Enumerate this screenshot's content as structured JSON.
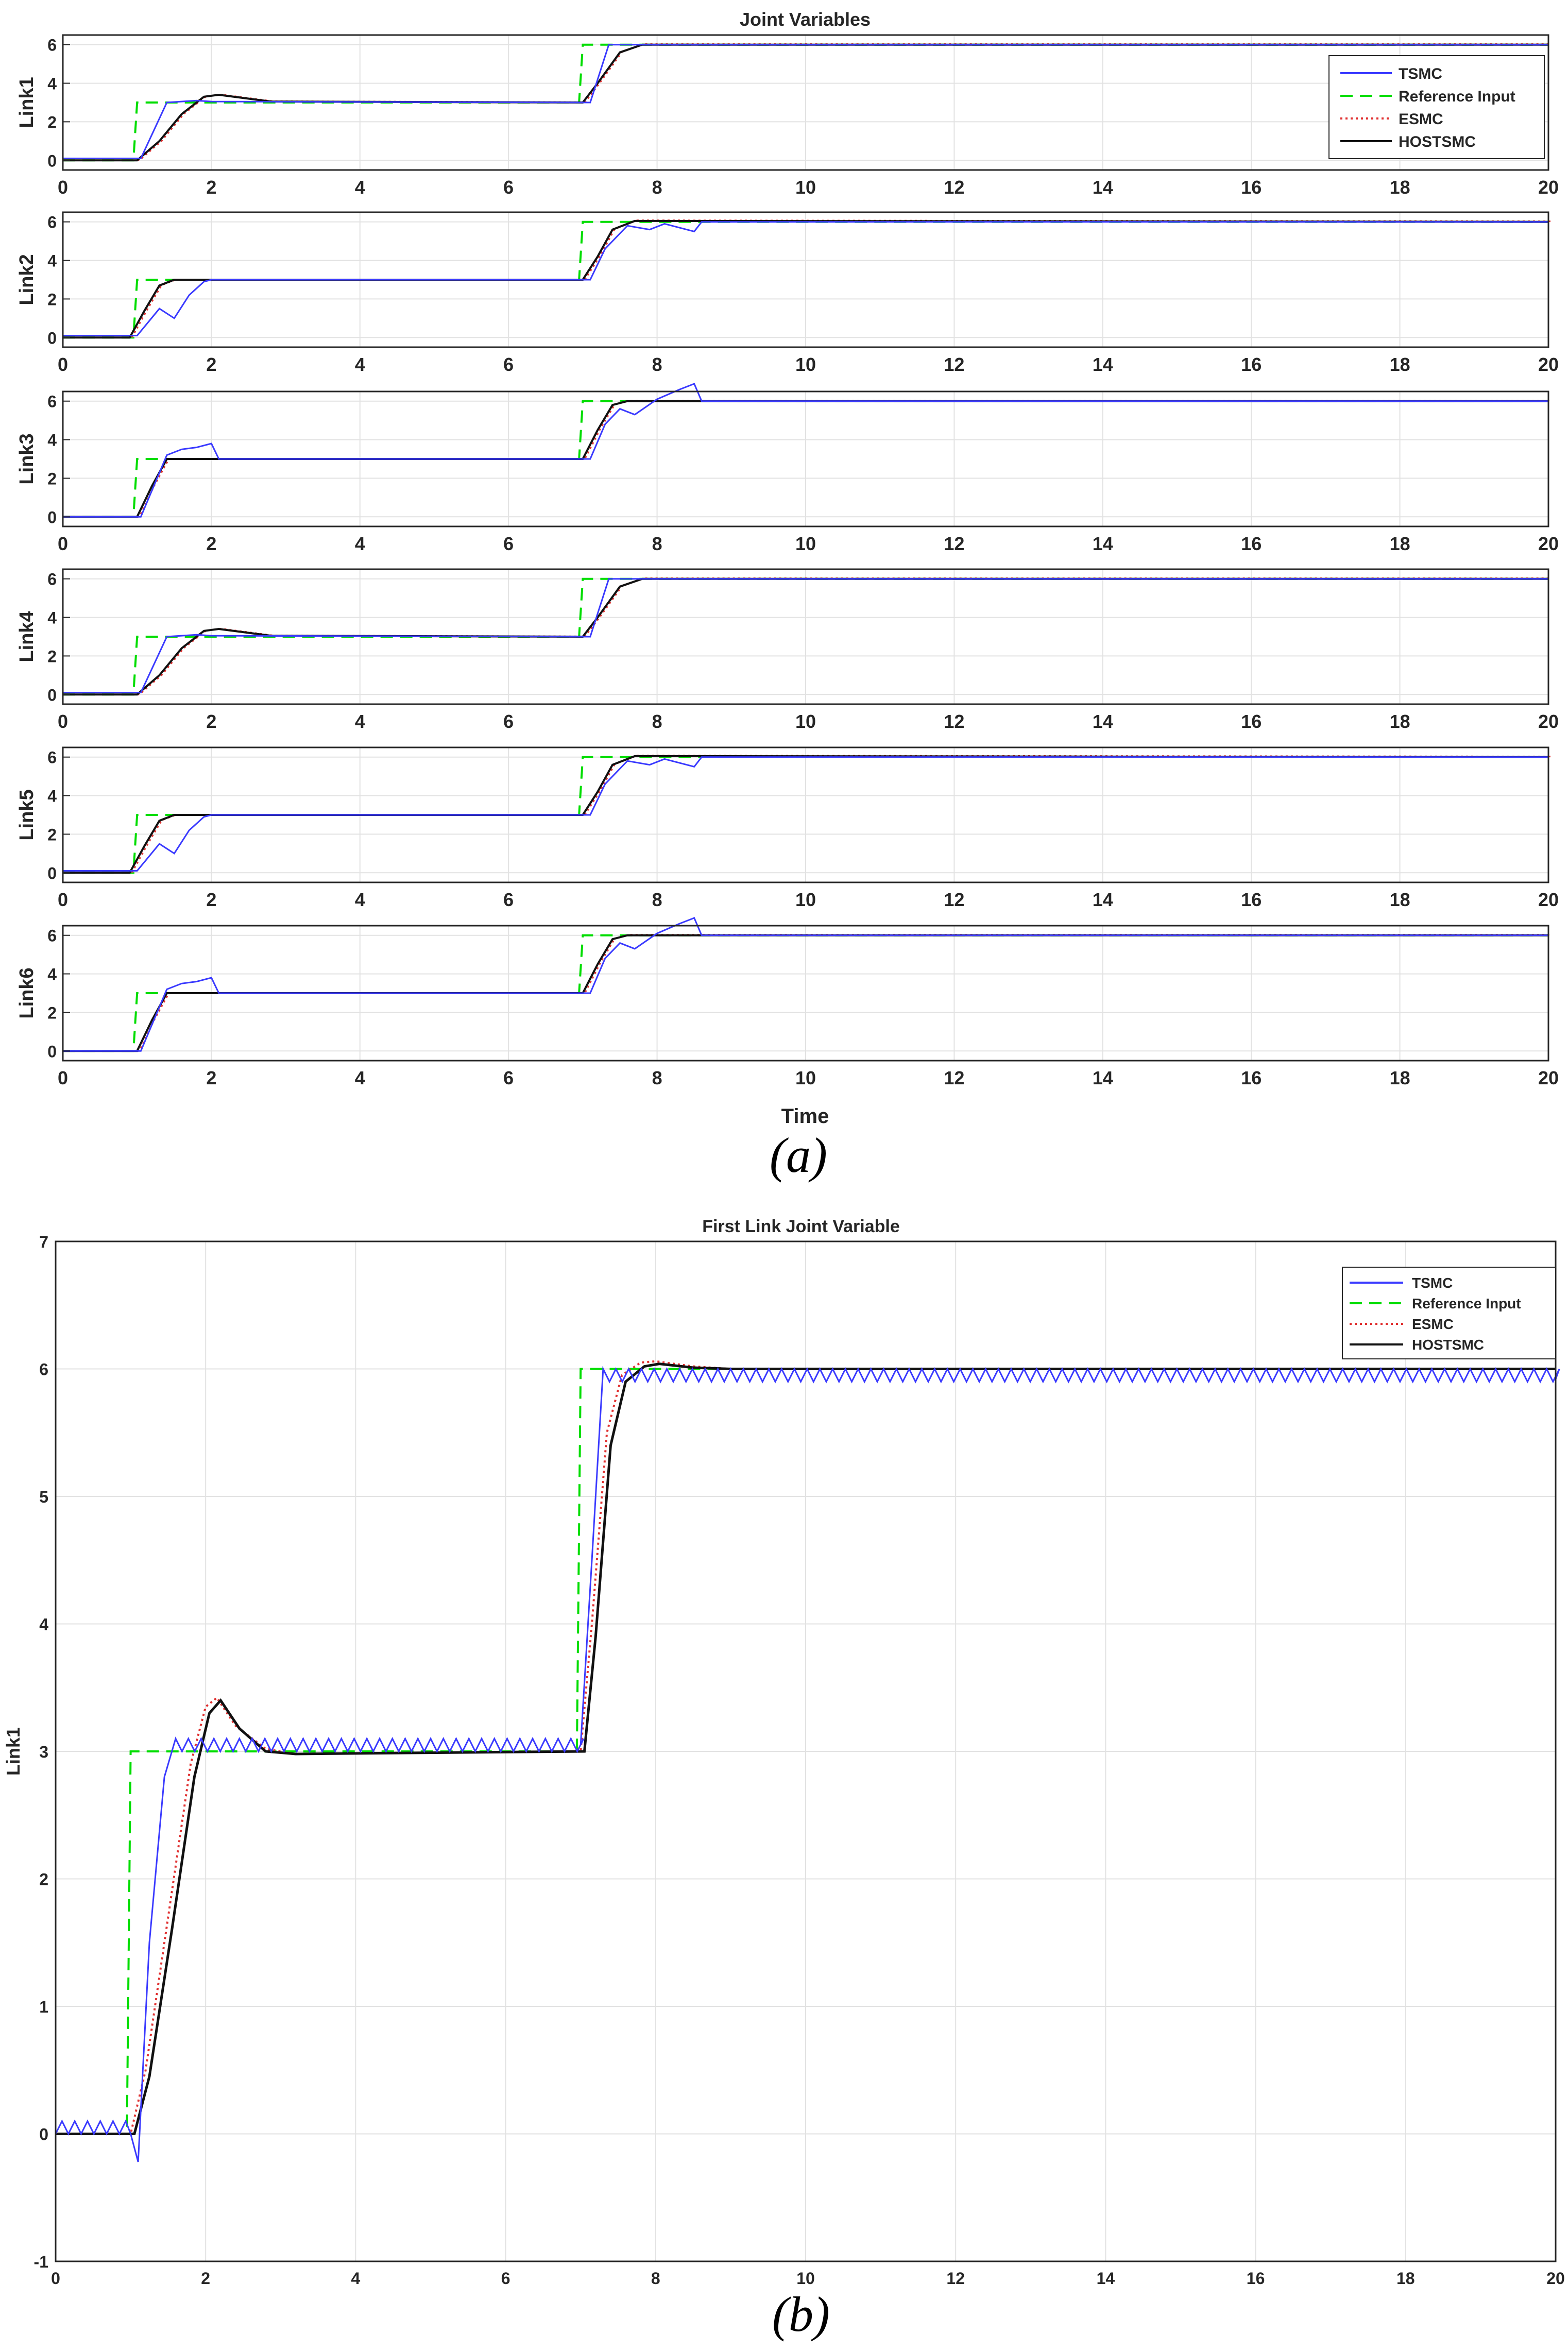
{
  "figure": {
    "caption_a": "(a)",
    "caption_b": "(b)"
  },
  "chart_data": [
    {
      "type": "line",
      "title": "Joint Variables",
      "xlabel": "Time",
      "ylabels": [
        "Link1",
        "Link2",
        "Link3",
        "Link4",
        "Link5",
        "Link6"
      ],
      "xlim": [
        0,
        20
      ],
      "ylim": [
        -0.5,
        6.5
      ],
      "xticks": [
        0,
        2,
        4,
        6,
        8,
        10,
        12,
        14,
        16,
        18,
        20
      ],
      "yticks": [
        0,
        2,
        4,
        6
      ],
      "grid": true,
      "legend_position": "top-right (first panel)",
      "series": [
        {
          "name": "TSMC",
          "color": "#3a3aff",
          "style": "solid"
        },
        {
          "name": "Reference Input",
          "color": "#00dd00",
          "style": "dashed"
        },
        {
          "name": "ESMC",
          "color": "#e03030",
          "style": "dotted"
        },
        {
          "name": "HOSTSMC",
          "color": "#111111",
          "style": "solid"
        }
      ],
      "reference": {
        "x": [
          0,
          0.95,
          1.0,
          6.95,
          7.0,
          20
        ],
        "y": [
          0,
          0,
          3,
          3,
          6,
          6
        ]
      },
      "panels": [
        {
          "name": "Link1",
          "tsmc": {
            "x": [
              0,
              1.05,
              1.4,
              1.8,
              2.0,
              7.1,
              7.35,
              7.6,
              20
            ],
            "y": [
              0.1,
              0.1,
              3.0,
              3.1,
              3.05,
              3.0,
              6.0,
              6.0,
              6.0
            ]
          },
          "hostsmc": {
            "x": [
              0,
              1.0,
              1.3,
              1.6,
              1.9,
              2.1,
              2.4,
              2.8,
              7.0,
              7.2,
              7.5,
              7.8,
              20
            ],
            "y": [
              0,
              0,
              1.0,
              2.4,
              3.3,
              3.4,
              3.25,
              3.05,
              3.0,
              4.0,
              5.6,
              6.0,
              6.0
            ]
          }
        },
        {
          "name": "Link2",
          "tsmc": {
            "x": [
              0,
              1.0,
              1.3,
              1.5,
              1.7,
              1.9,
              2.0,
              7.1,
              7.3,
              7.6,
              7.9,
              8.1,
              8.3,
              8.5,
              8.6,
              20
            ],
            "y": [
              0.1,
              0.1,
              1.5,
              1.0,
              2.2,
              2.9,
              3.0,
              3.0,
              4.6,
              5.8,
              5.6,
              5.9,
              5.7,
              5.5,
              6.0,
              6.0
            ]
          },
          "hostsmc": {
            "x": [
              0,
              0.9,
              1.1,
              1.3,
              1.5,
              7.0,
              7.2,
              7.4,
              7.7,
              20
            ],
            "y": [
              0,
              0,
              1.4,
              2.7,
              3.0,
              3.0,
              4.2,
              5.6,
              6.05,
              6.0
            ]
          }
        },
        {
          "name": "Link3",
          "tsmc": {
            "x": [
              0,
              1.05,
              1.4,
              1.6,
              1.8,
              2.0,
              2.1,
              7.1,
              7.3,
              7.5,
              7.7,
              8.0,
              8.3,
              8.5,
              8.6,
              20
            ],
            "y": [
              0,
              0,
              3.2,
              3.5,
              3.6,
              3.8,
              3.0,
              3.0,
              4.8,
              5.6,
              5.3,
              6.1,
              6.6,
              6.9,
              6.0,
              6.0
            ]
          },
          "hostsmc": {
            "x": [
              0,
              1.0,
              1.2,
              1.4,
              7.0,
              7.2,
              7.4,
              7.6,
              20
            ],
            "y": [
              0,
              0,
              1.6,
              3.0,
              3.0,
              4.5,
              5.8,
              6.0,
              6.0
            ]
          }
        },
        {
          "name": "Link4",
          "tsmc": {
            "x": [
              0,
              1.05,
              1.4,
              1.8,
              2.0,
              7.1,
              7.35,
              7.6,
              20
            ],
            "y": [
              0.1,
              0.1,
              3.0,
              3.1,
              3.05,
              3.0,
              6.0,
              6.0,
              6.0
            ]
          },
          "hostsmc": {
            "x": [
              0,
              1.0,
              1.3,
              1.6,
              1.9,
              2.1,
              2.4,
              2.8,
              7.0,
              7.2,
              7.5,
              7.8,
              20
            ],
            "y": [
              0,
              0,
              1.0,
              2.4,
              3.3,
              3.4,
              3.25,
              3.05,
              3.0,
              4.0,
              5.6,
              6.0,
              6.0
            ]
          }
        },
        {
          "name": "Link5",
          "tsmc": {
            "x": [
              0,
              1.0,
              1.3,
              1.5,
              1.7,
              1.9,
              2.0,
              7.1,
              7.3,
              7.6,
              7.9,
              8.1,
              8.3,
              8.5,
              8.6,
              20
            ],
            "y": [
              0.1,
              0.1,
              1.5,
              1.0,
              2.2,
              2.9,
              3.0,
              3.0,
              4.6,
              5.8,
              5.6,
              5.9,
              5.7,
              5.5,
              6.0,
              6.0
            ]
          },
          "hostsmc": {
            "x": [
              0,
              0.9,
              1.1,
              1.3,
              1.5,
              7.0,
              7.2,
              7.4,
              7.7,
              20
            ],
            "y": [
              0,
              0,
              1.4,
              2.7,
              3.0,
              3.0,
              4.2,
              5.6,
              6.05,
              6.0
            ]
          }
        },
        {
          "name": "Link6",
          "tsmc": {
            "x": [
              0,
              1.05,
              1.4,
              1.6,
              1.8,
              2.0,
              2.1,
              7.1,
              7.3,
              7.5,
              7.7,
              8.0,
              8.3,
              8.5,
              8.6,
              20
            ],
            "y": [
              0,
              0,
              3.2,
              3.5,
              3.6,
              3.8,
              3.0,
              3.0,
              4.8,
              5.6,
              5.3,
              6.1,
              6.6,
              6.9,
              6.0,
              6.0
            ]
          },
          "hostsmc": {
            "x": [
              0,
              1.0,
              1.2,
              1.4,
              7.0,
              7.2,
              7.4,
              7.6,
              20
            ],
            "y": [
              0,
              0,
              1.6,
              3.0,
              3.0,
              4.5,
              5.8,
              6.0,
              6.0
            ]
          }
        }
      ]
    },
    {
      "type": "line",
      "title": "First Link Joint Variable",
      "ylabel": "Link1",
      "xlabel": "",
      "xlim": [
        0,
        20
      ],
      "ylim": [
        -1,
        7
      ],
      "xticks": [
        0,
        2,
        4,
        6,
        8,
        10,
        12,
        14,
        16,
        18,
        20
      ],
      "yticks": [
        -1,
        0,
        1,
        2,
        3,
        4,
        5,
        6,
        7
      ],
      "grid": true,
      "legend_position": "top-right",
      "series": [
        {
          "name": "TSMC",
          "color": "#3a3aff",
          "style": "solid",
          "x": [
            0,
            1.0,
            1.1,
            1.25,
            1.45,
            1.6,
            7.0,
            7.15,
            7.3,
            7.45,
            20
          ],
          "y": [
            0,
            0,
            -0.22,
            1.5,
            2.8,
            3.0,
            3.0,
            4.5,
            6.0,
            5.95,
            5.95
          ],
          "chatter_amplitude": 0.1
        },
        {
          "name": "Reference Input",
          "color": "#00dd00",
          "style": "dashed",
          "x": [
            0,
            0.95,
            1.0,
            6.95,
            7.0,
            20
          ],
          "y": [
            0,
            0,
            3,
            3,
            6,
            6
          ]
        },
        {
          "name": "ESMC",
          "color": "#e03030",
          "style": "dotted",
          "x": [
            0,
            1.0,
            1.2,
            1.5,
            1.8,
            2.0,
            2.15,
            2.4,
            2.8,
            3.2,
            7.0,
            7.15,
            7.35,
            7.55,
            7.8,
            8.0,
            8.5,
            9.0,
            20
          ],
          "y": [
            0,
            0,
            0.5,
            1.7,
            2.9,
            3.35,
            3.42,
            3.2,
            3.02,
            2.98,
            3.0,
            4.0,
            5.5,
            5.95,
            6.05,
            6.06,
            6.02,
            6.0,
            6.0
          ]
        },
        {
          "name": "HOSTSMC",
          "color": "#111111",
          "style": "solid",
          "x": [
            0,
            1.05,
            1.25,
            1.55,
            1.85,
            2.05,
            2.2,
            2.45,
            2.8,
            3.2,
            7.05,
            7.2,
            7.4,
            7.6,
            7.85,
            8.05,
            8.5,
            9.0,
            20
          ],
          "y": [
            0,
            0,
            0.45,
            1.6,
            2.8,
            3.3,
            3.4,
            3.18,
            3.0,
            2.98,
            3.0,
            3.9,
            5.4,
            5.9,
            6.02,
            6.04,
            6.01,
            6.0,
            6.0
          ]
        }
      ]
    }
  ]
}
